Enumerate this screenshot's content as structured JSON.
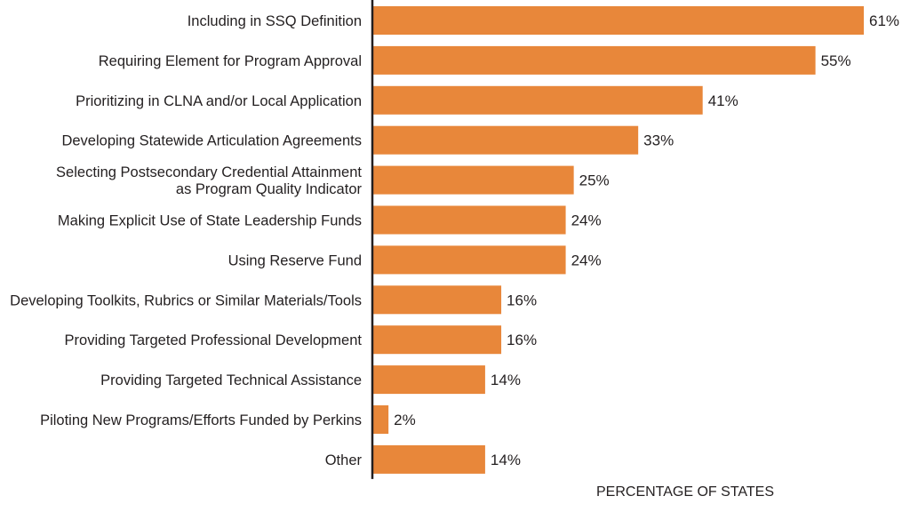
{
  "chart_data": {
    "type": "bar",
    "orientation": "horizontal",
    "title": "",
    "xlabel": "PERCENTAGE OF STATES",
    "ylabel": "",
    "xlim": [
      0,
      61
    ],
    "grid": false,
    "legend": "none",
    "bar_color": "#e8873a",
    "value_suffix": "%",
    "categories": [
      [
        "Including in SSQ Definition"
      ],
      [
        "Requiring Element for Program Approval"
      ],
      [
        "Prioritizing in CLNA and/or Local Application"
      ],
      [
        "Developing Statewide Articulation Agreements"
      ],
      [
        "Selecting Postsecondary Credential Attainment",
        "as Program Quality Indicator"
      ],
      [
        "Making Explicit Use of State Leadership Funds"
      ],
      [
        "Using Reserve Fund"
      ],
      [
        "Developing Toolkits, Rubrics or Similar Materials/Tools"
      ],
      [
        "Providing Targeted Professional Development"
      ],
      [
        "Providing Targeted Technical Assistance"
      ],
      [
        "Piloting New Programs/Efforts Funded by Perkins"
      ],
      [
        "Other"
      ]
    ],
    "values": [
      61,
      55,
      41,
      33,
      25,
      24,
      24,
      16,
      16,
      14,
      2,
      14
    ],
    "value_labels": [
      "61%",
      "55%",
      "41%",
      "33%",
      "25%",
      "24%",
      "24%",
      "16%",
      "16%",
      "14%",
      "2%",
      "14%"
    ]
  }
}
